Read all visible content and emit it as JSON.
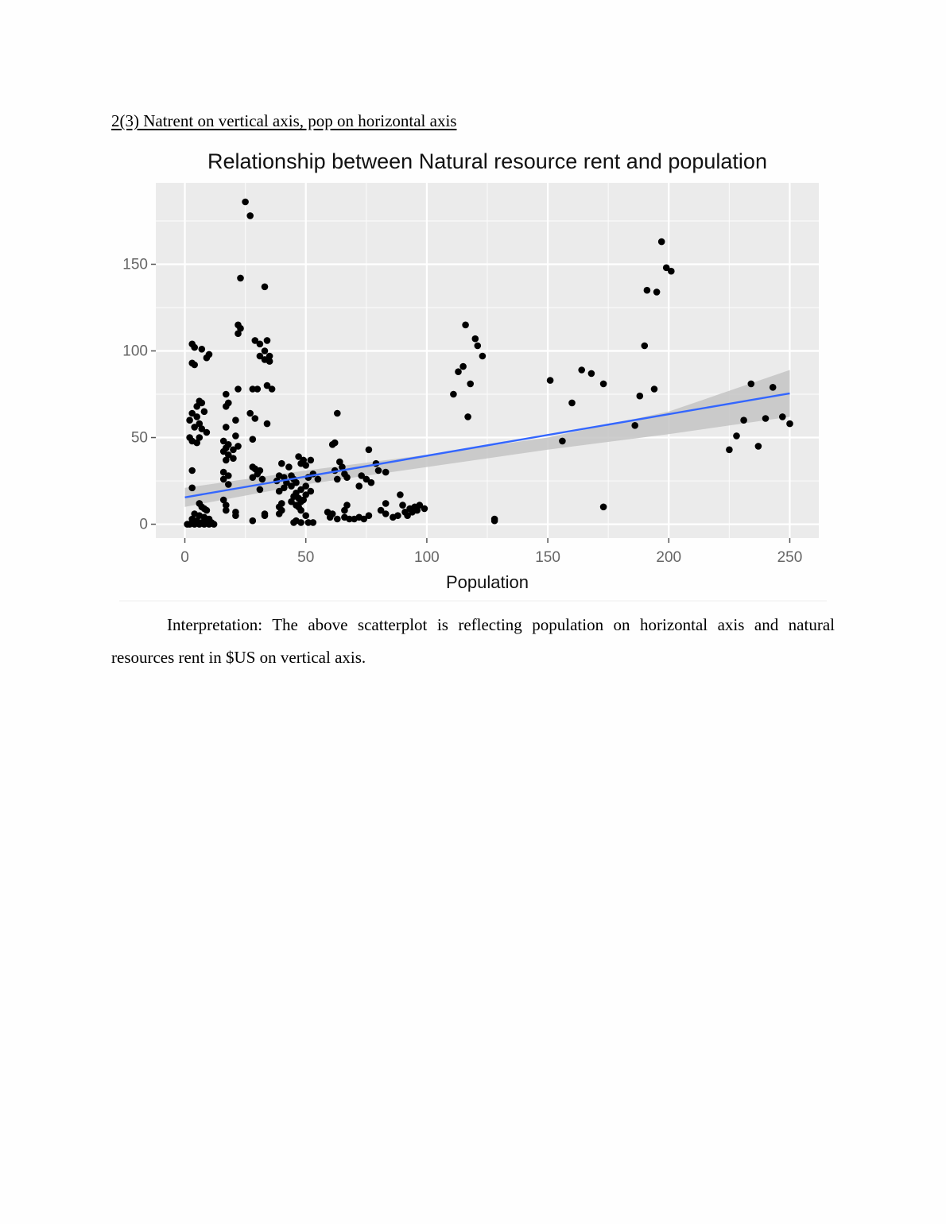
{
  "document": {
    "heading": "2(3) Natrent on vertical axis, pop on horizontal axis",
    "interpretation": "Interpretation: The above scatterplot is reflecting population on horizontal axis and natural resources rent in $US on vertical axis."
  },
  "chart_data": {
    "type": "scatter",
    "title": "Relationship between Natural resource rent and population",
    "xlabel": "Population",
    "ylabel": "",
    "xlim": [
      -12,
      262
    ],
    "ylim": [
      -8,
      197
    ],
    "x_ticks": [
      0,
      50,
      100,
      150,
      200,
      250
    ],
    "y_ticks": [
      0,
      50,
      100,
      150
    ],
    "grid": true,
    "legend": "none",
    "colors": {
      "panel": "#ebebeb",
      "grid": "#ffffff",
      "points": "#000000",
      "trend": "#3366ff",
      "ribbon": "#c4c4c4"
    },
    "trend_line": {
      "x": [
        0,
        250
      ],
      "y": [
        15.5,
        75.5
      ]
    },
    "confidence_band": {
      "x": [
        0,
        50,
        100,
        150,
        200,
        250
      ],
      "lower": [
        10,
        23,
        33,
        43,
        52,
        62
      ],
      "upper": [
        21,
        31,
        40,
        50,
        65,
        89
      ]
    },
    "points": [
      [
        25,
        186
      ],
      [
        27,
        178
      ],
      [
        23,
        142
      ],
      [
        33,
        137
      ],
      [
        22,
        115
      ],
      [
        23,
        113
      ],
      [
        22,
        110
      ],
      [
        29,
        106
      ],
      [
        34,
        106
      ],
      [
        31,
        104
      ],
      [
        33,
        100
      ],
      [
        31,
        97
      ],
      [
        35,
        97
      ],
      [
        33,
        95
      ],
      [
        35,
        94
      ],
      [
        28,
        78
      ],
      [
        30,
        78
      ],
      [
        34,
        80
      ],
      [
        36,
        78
      ],
      [
        27,
        64
      ],
      [
        29,
        61
      ],
      [
        34,
        58
      ],
      [
        28,
        49
      ],
      [
        28,
        33
      ],
      [
        29,
        32
      ],
      [
        31,
        31
      ],
      [
        30,
        29
      ],
      [
        28,
        27
      ],
      [
        32,
        26
      ],
      [
        31,
        20
      ],
      [
        28,
        2
      ],
      [
        33,
        5
      ],
      [
        3,
        104
      ],
      [
        4,
        102
      ],
      [
        7,
        101
      ],
      [
        10,
        98
      ],
      [
        9,
        96
      ],
      [
        3,
        93
      ],
      [
        4,
        92
      ],
      [
        6,
        71
      ],
      [
        7,
        70
      ],
      [
        5,
        68
      ],
      [
        8,
        65
      ],
      [
        3,
        64
      ],
      [
        5,
        62
      ],
      [
        2,
        60
      ],
      [
        6,
        58
      ],
      [
        4,
        56
      ],
      [
        7,
        55
      ],
      [
        9,
        53
      ],
      [
        2,
        50
      ],
      [
        6,
        50
      ],
      [
        3,
        48
      ],
      [
        5,
        47
      ],
      [
        3,
        31
      ],
      [
        3,
        21
      ],
      [
        6,
        12
      ],
      [
        7,
        10
      ],
      [
        8,
        9
      ],
      [
        9,
        8
      ],
      [
        4,
        6
      ],
      [
        6,
        5
      ],
      [
        8,
        4
      ],
      [
        10,
        3
      ],
      [
        3,
        3
      ],
      [
        5,
        2
      ],
      [
        7,
        1
      ],
      [
        9,
        1
      ],
      [
        11,
        1
      ],
      [
        1,
        0
      ],
      [
        2,
        0
      ],
      [
        4,
        0
      ],
      [
        6,
        0
      ],
      [
        8,
        0
      ],
      [
        10,
        0
      ],
      [
        12,
        0
      ],
      [
        17,
        75
      ],
      [
        18,
        70
      ],
      [
        17,
        68
      ],
      [
        22,
        78
      ],
      [
        21,
        60
      ],
      [
        17,
        56
      ],
      [
        21,
        51
      ],
      [
        16,
        48
      ],
      [
        18,
        46
      ],
      [
        17,
        44
      ],
      [
        20,
        43
      ],
      [
        22,
        45
      ],
      [
        16,
        42
      ],
      [
        18,
        40
      ],
      [
        20,
        38
      ],
      [
        17,
        37
      ],
      [
        16,
        30
      ],
      [
        18,
        28
      ],
      [
        16,
        26
      ],
      [
        18,
        23
      ],
      [
        16,
        14
      ],
      [
        17,
        11
      ],
      [
        17,
        8
      ],
      [
        21,
        7
      ],
      [
        21,
        5
      ],
      [
        40,
        35
      ],
      [
        43,
        33
      ],
      [
        39,
        28
      ],
      [
        41,
        27
      ],
      [
        38,
        25
      ],
      [
        42,
        24
      ],
      [
        41,
        21
      ],
      [
        39,
        19
      ],
      [
        44,
        28
      ],
      [
        45,
        26
      ],
      [
        44,
        22
      ],
      [
        46,
        24
      ],
      [
        46,
        18
      ],
      [
        48,
        20
      ],
      [
        45,
        16
      ],
      [
        47,
        15
      ],
      [
        44,
        13
      ],
      [
        46,
        11
      ],
      [
        48,
        13
      ],
      [
        50,
        17
      ],
      [
        40,
        12
      ],
      [
        39,
        10
      ],
      [
        40,
        8
      ],
      [
        39,
        6
      ],
      [
        33,
        6
      ],
      [
        47,
        39
      ],
      [
        49,
        37
      ],
      [
        48,
        35
      ],
      [
        52,
        37
      ],
      [
        50,
        34
      ],
      [
        53,
        29
      ],
      [
        51,
        27
      ],
      [
        55,
        26
      ],
      [
        50,
        22
      ],
      [
        52,
        19
      ],
      [
        49,
        14
      ],
      [
        47,
        10
      ],
      [
        48,
        8
      ],
      [
        50,
        5
      ],
      [
        46,
        2
      ],
      [
        48,
        1
      ],
      [
        51,
        1
      ],
      [
        53,
        1
      ],
      [
        45,
        1
      ],
      [
        63,
        64
      ],
      [
        62,
        47
      ],
      [
        61,
        46
      ],
      [
        64,
        36
      ],
      [
        65,
        33
      ],
      [
        62,
        31
      ],
      [
        66,
        29
      ],
      [
        67,
        27
      ],
      [
        63,
        26
      ],
      [
        59,
        7
      ],
      [
        61,
        6
      ],
      [
        60,
        4
      ],
      [
        63,
        3
      ],
      [
        66,
        4
      ],
      [
        68,
        3
      ],
      [
        70,
        3
      ],
      [
        72,
        4
      ],
      [
        74,
        3
      ],
      [
        76,
        5
      ],
      [
        67,
        11
      ],
      [
        66,
        8
      ],
      [
        76,
        43
      ],
      [
        79,
        35
      ],
      [
        73,
        28
      ],
      [
        75,
        26
      ],
      [
        77,
        24
      ],
      [
        72,
        22
      ],
      [
        80,
        31
      ],
      [
        83,
        30
      ],
      [
        83,
        12
      ],
      [
        81,
        8
      ],
      [
        83,
        6
      ],
      [
        86,
        4
      ],
      [
        88,
        5
      ],
      [
        91,
        7
      ],
      [
        93,
        9
      ],
      [
        95,
        10
      ],
      [
        97,
        11
      ],
      [
        99,
        9
      ],
      [
        89,
        17
      ],
      [
        90,
        11
      ],
      [
        94,
        7
      ],
      [
        92,
        5
      ],
      [
        96,
        8
      ],
      [
        111,
        75
      ],
      [
        113,
        88
      ],
      [
        115,
        91
      ],
      [
        116,
        115
      ],
      [
        120,
        107
      ],
      [
        121,
        103
      ],
      [
        123,
        97
      ],
      [
        118,
        81
      ],
      [
        117,
        62
      ],
      [
        128,
        3
      ],
      [
        128,
        2
      ],
      [
        151,
        83
      ],
      [
        156,
        48
      ],
      [
        160,
        70
      ],
      [
        164,
        89
      ],
      [
        168,
        87
      ],
      [
        173,
        81
      ],
      [
        173,
        10
      ],
      [
        186,
        57
      ],
      [
        188,
        74
      ],
      [
        190,
        103
      ],
      [
        191,
        135
      ],
      [
        194,
        78
      ],
      [
        195,
        134
      ],
      [
        197,
        163
      ],
      [
        199,
        148
      ],
      [
        201,
        146
      ],
      [
        225,
        43
      ],
      [
        228,
        51
      ],
      [
        231,
        60
      ],
      [
        234,
        81
      ],
      [
        237,
        45
      ],
      [
        240,
        61
      ],
      [
        243,
        79
      ],
      [
        247,
        62
      ],
      [
        250,
        58
      ]
    ]
  }
}
